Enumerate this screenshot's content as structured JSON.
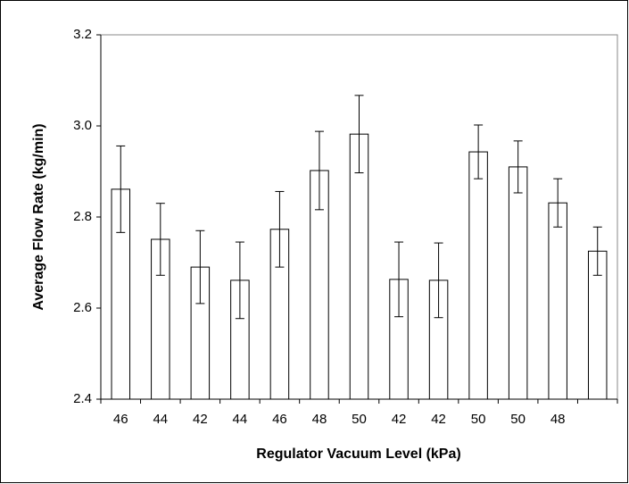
{
  "chart_data": {
    "type": "bar",
    "x_label": "Regulator Vacuum Level (kPa)",
    "y_label": "Average Flow Rate (kg/min)",
    "categories": [
      "46",
      "44",
      "42",
      "44",
      "46",
      "48",
      "50",
      "42",
      "42",
      "50",
      "50",
      "48",
      null
    ],
    "values": [
      2.861,
      2.751,
      2.69,
      2.661,
      2.773,
      2.902,
      2.982,
      2.663,
      2.661,
      2.943,
      2.91,
      2.831,
      2.725
    ],
    "errors": [
      0.095,
      0.079,
      0.08,
      0.084,
      0.083,
      0.086,
      0.085,
      0.082,
      0.082,
      0.059,
      0.057,
      0.053,
      0.053
    ],
    "color": "#ffffff",
    "ylim": [
      2.4,
      3.2
    ],
    "yticks": [
      2.4,
      2.6,
      2.8,
      {
        "value": 3,
        "label": "3.0"
      },
      3.2
    ],
    "grid": false
  }
}
